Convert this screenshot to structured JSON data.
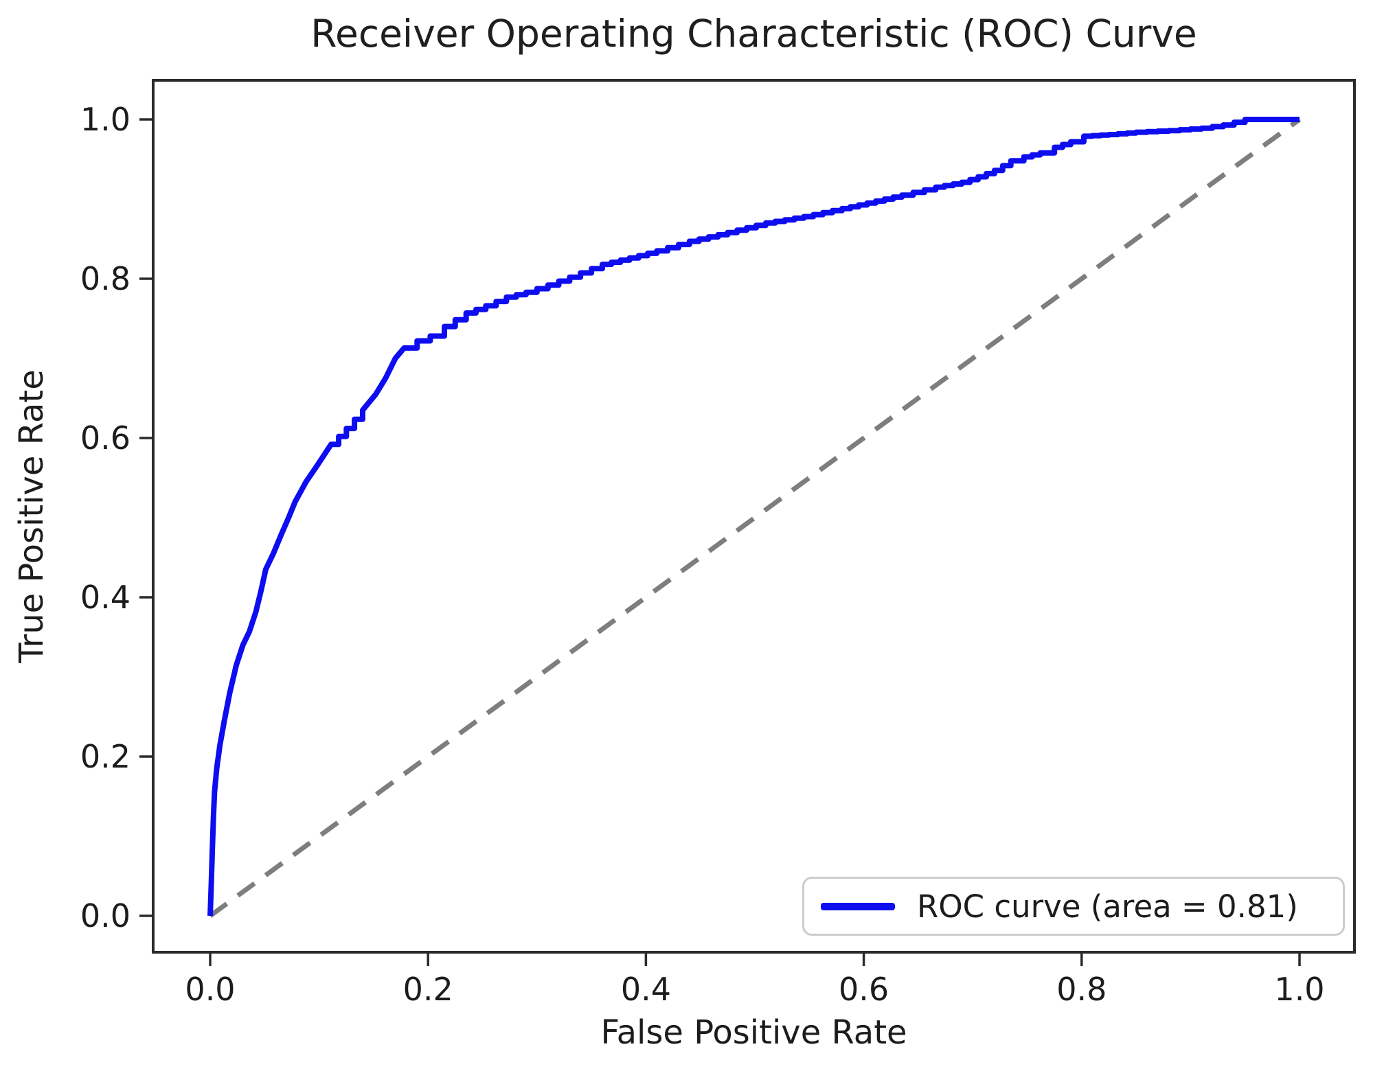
{
  "figure": {
    "title": "Receiver Operating Characteristic (ROC) Curve",
    "x_axis": {
      "label": "False Positive Rate",
      "tick_labels": [
        "0.0",
        "0.2",
        "0.4",
        "0.6",
        "0.8",
        "1.0"
      ],
      "tick_values": [
        0,
        0.2,
        0.4,
        0.6,
        0.8,
        1.0
      ]
    },
    "y_axis": {
      "label": "True Positive Rate",
      "tick_labels": [
        "0.0",
        "0.2",
        "0.4",
        "0.6",
        "0.8",
        "1.0"
      ],
      "tick_values": [
        0,
        0.2,
        0.4,
        0.6,
        0.8,
        1.0
      ]
    },
    "legend": {
      "label": "ROC curve (area = 0.81)"
    },
    "colors": {
      "roc_curve": "#0d0df0",
      "diagonal": "#7e7e7e",
      "axis": "#2b2b2b",
      "text": "#1c1c1c",
      "legend_border": "#cccccc"
    }
  },
  "chart_data": {
    "type": "line",
    "title": "Receiver Operating Characteristic (ROC) Curve",
    "xlabel": "False Positive Rate",
    "ylabel": "True Positive Rate",
    "xlim": [
      0.0,
      1.0
    ],
    "ylim": [
      0.0,
      1.0
    ],
    "grid": false,
    "legend_position": "lower right",
    "auc": 0.81,
    "series": [
      {
        "name": "ROC curve (area = 0.81)",
        "style": "solid-step",
        "color": "#0d0df0",
        "points": [
          [
            0.0,
            0.0
          ],
          [
            0.001,
            0.04
          ],
          [
            0.002,
            0.085
          ],
          [
            0.003,
            0.125
          ],
          [
            0.004,
            0.155
          ],
          [
            0.006,
            0.185
          ],
          [
            0.009,
            0.215
          ],
          [
            0.013,
            0.245
          ],
          [
            0.018,
            0.28
          ],
          [
            0.024,
            0.315
          ],
          [
            0.03,
            0.34
          ],
          [
            0.036,
            0.357
          ],
          [
            0.042,
            0.382
          ],
          [
            0.047,
            0.41
          ],
          [
            0.051,
            0.435
          ],
          [
            0.058,
            0.455
          ],
          [
            0.065,
            0.478
          ],
          [
            0.072,
            0.5
          ],
          [
            0.078,
            0.52
          ],
          [
            0.088,
            0.545
          ],
          [
            0.099,
            0.567
          ],
          [
            0.111,
            0.592
          ],
          [
            0.125,
            0.612
          ],
          [
            0.14,
            0.635
          ],
          [
            0.152,
            0.655
          ],
          [
            0.161,
            0.675
          ],
          [
            0.17,
            0.7
          ],
          [
            0.178,
            0.713
          ],
          [
            0.19,
            0.722
          ],
          [
            0.202,
            0.728
          ],
          [
            0.215,
            0.74
          ],
          [
            0.235,
            0.757
          ],
          [
            0.253,
            0.766
          ],
          [
            0.272,
            0.777
          ],
          [
            0.29,
            0.783
          ],
          [
            0.31,
            0.792
          ],
          [
            0.33,
            0.802
          ],
          [
            0.36,
            0.818
          ],
          [
            0.385,
            0.826
          ],
          [
            0.41,
            0.835
          ],
          [
            0.44,
            0.847
          ],
          [
            0.475,
            0.858
          ],
          [
            0.51,
            0.87
          ],
          [
            0.545,
            0.878
          ],
          [
            0.58,
            0.888
          ],
          [
            0.603,
            0.895
          ],
          [
            0.635,
            0.905
          ],
          [
            0.666,
            0.915
          ],
          [
            0.69,
            0.921
          ],
          [
            0.705,
            0.928
          ],
          [
            0.72,
            0.936
          ],
          [
            0.735,
            0.948
          ],
          [
            0.747,
            0.953
          ],
          [
            0.762,
            0.958
          ],
          [
            0.775,
            0.965
          ],
          [
            0.79,
            0.972
          ],
          [
            0.802,
            0.979
          ],
          [
            0.825,
            0.981
          ],
          [
            0.85,
            0.984
          ],
          [
            0.88,
            0.986
          ],
          [
            0.91,
            0.989
          ],
          [
            0.93,
            0.993
          ],
          [
            0.95,
            1.0
          ],
          [
            1.0,
            1.0
          ]
        ]
      },
      {
        "name": "chance-diagonal",
        "style": "dashed",
        "color": "#7e7e7e",
        "points": [
          [
            0.0,
            0.0
          ],
          [
            1.0,
            1.0
          ]
        ]
      }
    ]
  }
}
